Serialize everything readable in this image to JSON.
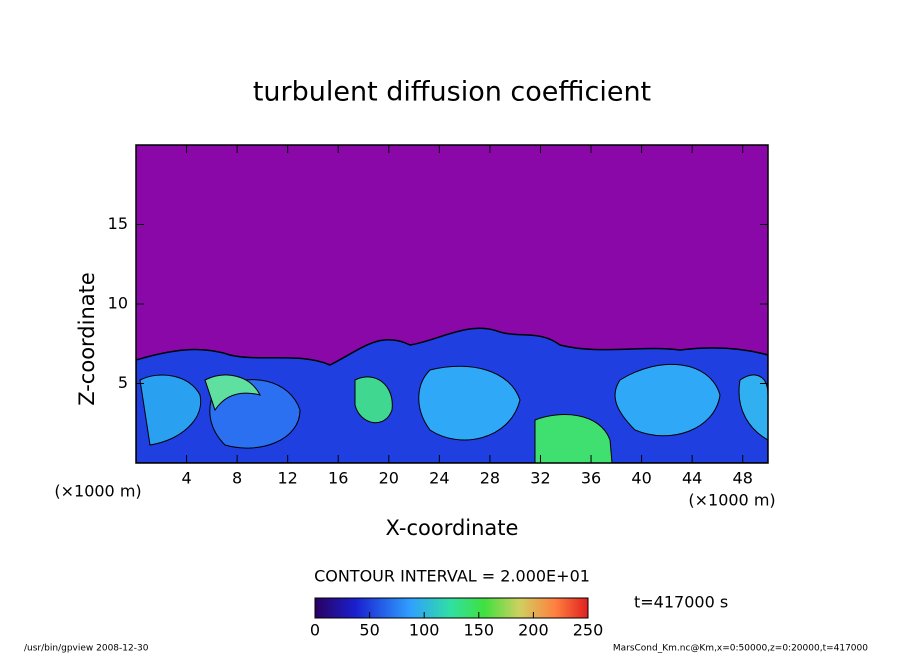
{
  "chart_data": {
    "type": "contour",
    "title": "turbulent diffusion coefficient",
    "xlabel": "X-coordinate",
    "ylabel": "Z-coordinate",
    "xunit": "(×1000 m)",
    "yunit": "(×1000 m)",
    "xlim": [
      0,
      50
    ],
    "xticks": [
      4,
      8,
      12,
      16,
      20,
      24,
      28,
      32,
      36,
      40,
      44,
      48
    ],
    "ylim": [
      0,
      20
    ],
    "yticks": [
      5,
      10,
      15
    ],
    "contour_interval": "CONTOUR INTERVAL = 2.000E+01",
    "time_label": "t=417000 s",
    "colorbar": {
      "lim": [
        0,
        250
      ],
      "ticks": [
        0,
        50,
        100,
        150,
        200,
        250
      ]
    },
    "footer_left": "/usr/bin/gpview  2008-12-30",
    "footer_right": "MarsCond_Km.nc@Km,x=0:50000,z=0:20000,t=417000"
  }
}
